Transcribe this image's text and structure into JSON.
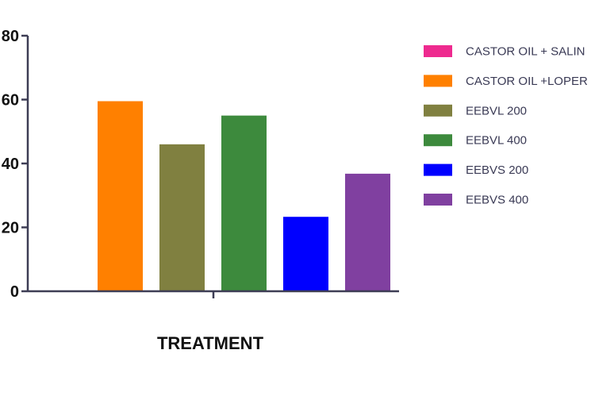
{
  "chart_data": {
    "type": "bar",
    "categories": [
      "CASTOR OIL + SALIN",
      "CASTOR OIL +LOPER",
      "EEBVL 200",
      "EEBVL 400",
      "EEBVS 200",
      "EEBVS 400"
    ],
    "values": [
      0,
      59.5,
      46,
      55,
      23.3,
      36.8
    ],
    "colors": [
      "#ee2a8f",
      "#ff8000",
      "#808040",
      "#3d8a3d",
      "#0000ff",
      "#8040a0"
    ],
    "title": "",
    "xlabel": "TREATMENT",
    "ylabel": "",
    "ylim": [
      0,
      80
    ],
    "yticks": [
      "0",
      "20",
      "40",
      "60",
      "80"
    ],
    "grid": false,
    "legend": "right"
  }
}
